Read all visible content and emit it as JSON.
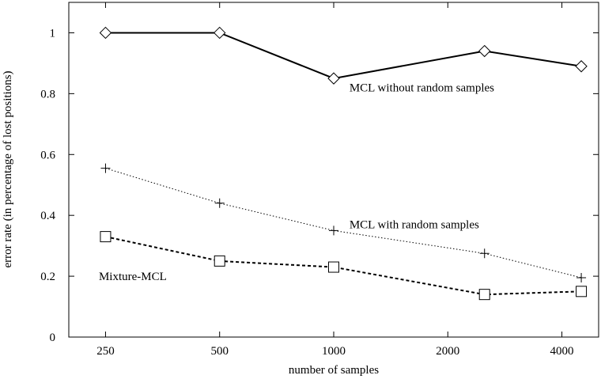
{
  "chart_data": {
    "type": "line",
    "title": "",
    "xlabel": "number of samples",
    "ylabel": "error rate (in percentage of lost positions)",
    "xscale": "log",
    "xlim": [
      200,
      5000
    ],
    "ylim": [
      0,
      1.1
    ],
    "xticks": [
      {
        "value": 250,
        "label": "250"
      },
      {
        "value": 500,
        "label": "500"
      },
      {
        "value": 1000,
        "label": "1000"
      },
      {
        "value": 2000,
        "label": "2000"
      },
      {
        "value": 4000,
        "label": "4000"
      }
    ],
    "yticks": [
      {
        "value": 0,
        "label": "0"
      },
      {
        "value": 0.2,
        "label": "0.2"
      },
      {
        "value": 0.4,
        "label": "0.4"
      },
      {
        "value": 0.6,
        "label": "0.6"
      },
      {
        "value": 0.8,
        "label": "0.8"
      },
      {
        "value": 1,
        "label": "1"
      }
    ],
    "grid": false,
    "legend": "none",
    "series": [
      {
        "marker": "diamond",
        "line_style": "solid",
        "x": [
          250,
          500,
          1000,
          2500,
          4500
        ],
        "y": [
          1.0,
          1.0,
          0.85,
          0.94,
          0.89
        ]
      },
      {
        "marker": "plus",
        "line_style": "dotted",
        "x": [
          250,
          500,
          1000,
          2500,
          4500
        ],
        "y": [
          0.555,
          0.44,
          0.35,
          0.275,
          0.195
        ]
      },
      {
        "marker": "square",
        "line_style": "dashed",
        "x": [
          250,
          500,
          1000,
          2500,
          4500
        ],
        "y": [
          0.33,
          0.25,
          0.23,
          0.14,
          0.15
        ]
      }
    ],
    "annotations": [
      {
        "text": "MCL without random samples",
        "x": 1100,
        "y": 0.82,
        "anchor": "start"
      },
      {
        "text": "MCL with random samples",
        "x": 1100,
        "y": 0.37,
        "anchor": "start"
      },
      {
        "text": "Mixture-MCL",
        "x": 240,
        "y": 0.2,
        "anchor": "start"
      }
    ],
    "colors": {
      "line": "#000000",
      "background": "#ffffff"
    }
  }
}
